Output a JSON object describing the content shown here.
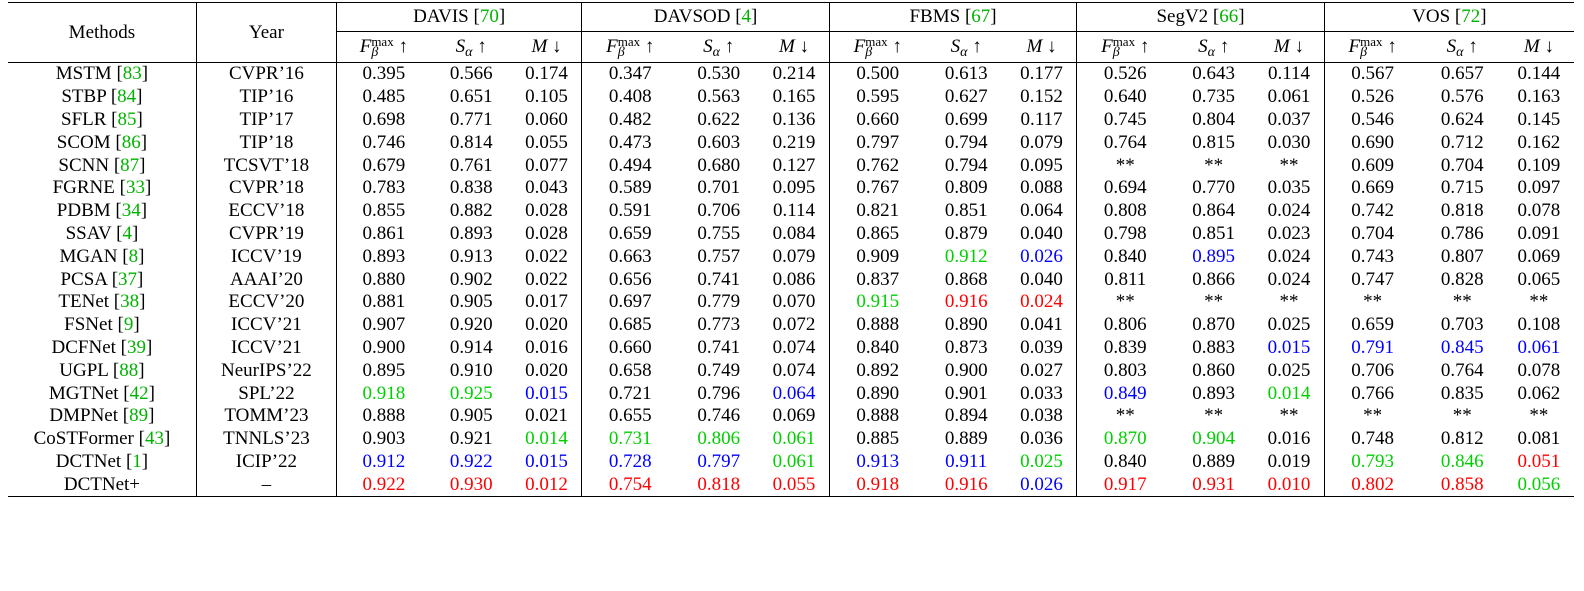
{
  "headers": {
    "methods": "Methods",
    "year": "Year",
    "datasets": [
      {
        "name": "DAVIS",
        "ref": "70"
      },
      {
        "name": "DAVSOD",
        "ref": "4"
      },
      {
        "name": "FBMS",
        "ref": "67"
      },
      {
        "name": "SegV2",
        "ref": "66"
      },
      {
        "name": "VOS",
        "ref": "72"
      }
    ],
    "metrics": [
      {
        "main": "F",
        "sup": "max",
        "sub": "β",
        "arrow": "↑"
      },
      {
        "main": "S",
        "sup": "",
        "sub": "α",
        "arrow": "↑"
      },
      {
        "main": "M",
        "sup": "",
        "sub": "",
        "arrow": "↓"
      }
    ]
  },
  "rows": [
    {
      "method": "MSTM",
      "ref": "83",
      "year": "CVPR’16",
      "values": [
        "0.395",
        "0.566",
        "0.174",
        "0.347",
        "0.530",
        "0.214",
        "0.500",
        "0.613",
        "0.177",
        "0.526",
        "0.643",
        "0.114",
        "0.567",
        "0.657",
        "0.144"
      ]
    },
    {
      "method": "STBP",
      "ref": "84",
      "year": "TIP’16",
      "values": [
        "0.485",
        "0.651",
        "0.105",
        "0.408",
        "0.563",
        "0.165",
        "0.595",
        "0.627",
        "0.152",
        "0.640",
        "0.735",
        "0.061",
        "0.526",
        "0.576",
        "0.163"
      ]
    },
    {
      "method": "SFLR",
      "ref": "85",
      "year": "TIP’17",
      "values": [
        "0.698",
        "0.771",
        "0.060",
        "0.482",
        "0.622",
        "0.136",
        "0.660",
        "0.699",
        "0.117",
        "0.745",
        "0.804",
        "0.037",
        "0.546",
        "0.624",
        "0.145"
      ]
    },
    {
      "method": "SCOM",
      "ref": "86",
      "year": "TIP’18",
      "values": [
        "0.746",
        "0.814",
        "0.055",
        "0.473",
        "0.603",
        "0.219",
        "0.797",
        "0.794",
        "0.079",
        "0.764",
        "0.815",
        "0.030",
        "0.690",
        "0.712",
        "0.162"
      ]
    },
    {
      "method": "SCNN",
      "ref": "87",
      "year": "TCSVT’18",
      "values": [
        "0.679",
        "0.761",
        "0.077",
        "0.494",
        "0.680",
        "0.127",
        "0.762",
        "0.794",
        "0.095",
        "**",
        "**",
        "**",
        "0.609",
        "0.704",
        "0.109"
      ]
    },
    {
      "method": "FGRNE",
      "ref": "33",
      "year": "CVPR’18",
      "values": [
        "0.783",
        "0.838",
        "0.043",
        "0.589",
        "0.701",
        "0.095",
        "0.767",
        "0.809",
        "0.088",
        "0.694",
        "0.770",
        "0.035",
        "0.669",
        "0.715",
        "0.097"
      ]
    },
    {
      "method": "PDBM",
      "ref": "34",
      "year": "ECCV’18",
      "values": [
        "0.855",
        "0.882",
        "0.028",
        "0.591",
        "0.706",
        "0.114",
        "0.821",
        "0.851",
        "0.064",
        "0.808",
        "0.864",
        "0.024",
        "0.742",
        "0.818",
        "0.078"
      ]
    },
    {
      "method": "SSAV",
      "ref": "4",
      "year": "CVPR’19",
      "values": [
        "0.861",
        "0.893",
        "0.028",
        "0.659",
        "0.755",
        "0.084",
        "0.865",
        "0.879",
        "0.040",
        "0.798",
        "0.851",
        "0.023",
        "0.704",
        "0.786",
        "0.091"
      ]
    },
    {
      "method": "MGAN",
      "ref": "8",
      "year": "ICCV’19",
      "values": [
        "0.893",
        "0.913",
        "0.022",
        "0.663",
        "0.757",
        "0.079",
        "0.909",
        "0.912",
        "0.026",
        "0.840",
        "0.895",
        "0.024",
        "0.743",
        "0.807",
        "0.069"
      ],
      "colors": {
        "7": "green",
        "8": "blue",
        "10": "blue"
      }
    },
    {
      "method": "PCSA",
      "ref": "37",
      "year": "AAAI’20",
      "values": [
        "0.880",
        "0.902",
        "0.022",
        "0.656",
        "0.741",
        "0.086",
        "0.837",
        "0.868",
        "0.040",
        "0.811",
        "0.866",
        "0.024",
        "0.747",
        "0.828",
        "0.065"
      ]
    },
    {
      "method": "TENet",
      "ref": "38",
      "year": "ECCV’20",
      "values": [
        "0.881",
        "0.905",
        "0.017",
        "0.697",
        "0.779",
        "0.070",
        "0.915",
        "0.916",
        "0.024",
        "**",
        "**",
        "**",
        "**",
        "**",
        "**"
      ],
      "colors": {
        "6": "green",
        "7": "red",
        "8": "red"
      }
    },
    {
      "method": "FSNet",
      "ref": "9",
      "year": "ICCV’21",
      "values": [
        "0.907",
        "0.920",
        "0.020",
        "0.685",
        "0.773",
        "0.072",
        "0.888",
        "0.890",
        "0.041",
        "0.806",
        "0.870",
        "0.025",
        "0.659",
        "0.703",
        "0.108"
      ]
    },
    {
      "method": "DCFNet",
      "ref": "39",
      "year": "ICCV’21",
      "values": [
        "0.900",
        "0.914",
        "0.016",
        "0.660",
        "0.741",
        "0.074",
        "0.840",
        "0.873",
        "0.039",
        "0.839",
        "0.883",
        "0.015",
        "0.791",
        "0.845",
        "0.061"
      ],
      "colors": {
        "11": "blue",
        "12": "blue",
        "13": "blue",
        "14": "blue"
      }
    },
    {
      "method": "UGPL",
      "ref": "88",
      "year": "NeurIPS’22",
      "values": [
        "0.895",
        "0.910",
        "0.020",
        "0.658",
        "0.749",
        "0.074",
        "0.892",
        "0.900",
        "0.027",
        "0.803",
        "0.860",
        "0.025",
        "0.706",
        "0.764",
        "0.078"
      ]
    },
    {
      "method": "MGTNet",
      "ref": "42",
      "year": "SPL’22",
      "values": [
        "0.918",
        "0.925",
        "0.015",
        "0.721",
        "0.796",
        "0.064",
        "0.890",
        "0.901",
        "0.033",
        "0.849",
        "0.893",
        "0.014",
        "0.766",
        "0.835",
        "0.062"
      ],
      "colors": {
        "0": "green",
        "1": "green",
        "2": "blue",
        "5": "blue",
        "9": "blue",
        "11": "green"
      }
    },
    {
      "method": "DMPNet",
      "ref": "89",
      "year": "TOMM’23",
      "values": [
        "0.888",
        "0.905",
        "0.021",
        "0.655",
        "0.746",
        "0.069",
        "0.888",
        "0.894",
        "0.038",
        "**",
        "**",
        "**",
        "**",
        "**",
        "**"
      ]
    },
    {
      "method": "CoSTFormer",
      "ref": "43",
      "year": "TNNLS’23",
      "values": [
        "0.903",
        "0.921",
        "0.014",
        "0.731",
        "0.806",
        "0.061",
        "0.885",
        "0.889",
        "0.036",
        "0.870",
        "0.904",
        "0.016",
        "0.748",
        "0.812",
        "0.081"
      ],
      "colors": {
        "2": "green",
        "3": "green",
        "4": "green",
        "5": "green",
        "9": "green",
        "10": "green"
      }
    },
    {
      "method": "DCTNet",
      "ref": "1",
      "year": "ICIP’22",
      "values": [
        "0.912",
        "0.922",
        "0.015",
        "0.728",
        "0.797",
        "0.061",
        "0.913",
        "0.911",
        "0.025",
        "0.840",
        "0.889",
        "0.019",
        "0.793",
        "0.846",
        "0.051"
      ],
      "colors": {
        "0": "blue",
        "1": "blue",
        "2": "blue",
        "3": "blue",
        "4": "blue",
        "5": "green",
        "6": "blue",
        "7": "blue",
        "8": "green",
        "12": "green",
        "13": "green",
        "14": "red"
      }
    },
    {
      "method": "DCTNet+",
      "ref": "",
      "year": "–",
      "values": [
        "0.922",
        "0.930",
        "0.012",
        "0.754",
        "0.818",
        "0.055",
        "0.918",
        "0.916",
        "0.026",
        "0.917",
        "0.931",
        "0.010",
        "0.802",
        "0.858",
        "0.056"
      ],
      "colors": {
        "0": "red",
        "1": "red",
        "2": "red",
        "3": "red",
        "4": "red",
        "5": "red",
        "6": "red",
        "7": "red",
        "8": "blue",
        "9": "red",
        "10": "red",
        "11": "red",
        "12": "red",
        "13": "red",
        "14": "green"
      }
    }
  ]
}
